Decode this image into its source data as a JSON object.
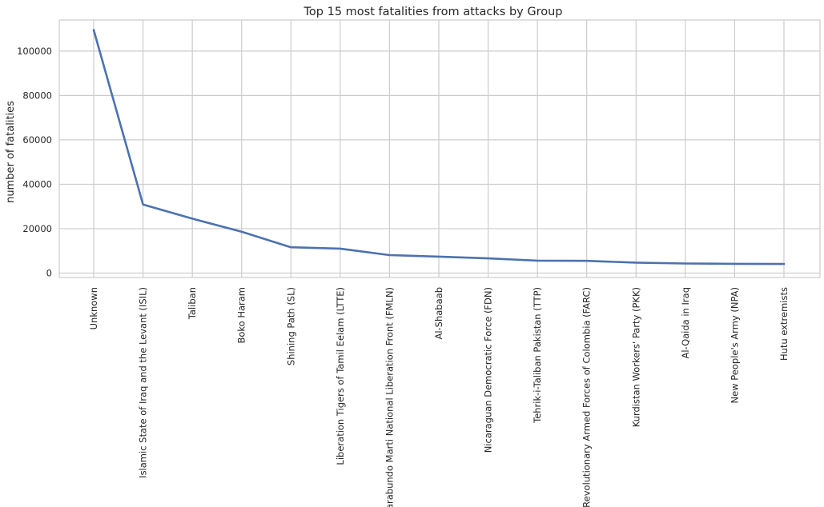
{
  "chart_data": {
    "type": "line",
    "title": "Top 15 most fatalities from attacks by Group",
    "xlabel": "",
    "ylabel": "number of fatalities",
    "categories": [
      "Unknown",
      "Islamic State of Iraq and the Levant (ISIL)",
      "Taliban",
      "Boko Haram",
      "Shining Path (SL)",
      "Liberation Tigers of Tamil Eelam (LTTE)",
      "Farabundo Marti National Liberation Front (FMLN)",
      "Al-Shabaab",
      "Nicaraguan Democratic Force (FDN)",
      "Tehrik-i-Taliban Pakistan (TTP)",
      "Revolutionary Armed Forces of Colombia (FARC)",
      "Kurdistan Workers' Party (PKK)",
      "Al-Qaida in Iraq",
      "New People's Army (NPA)",
      "Hutu extremists"
    ],
    "values": [
      109500,
      30900,
      24500,
      18600,
      11600,
      11000,
      8100,
      7400,
      6600,
      5600,
      5500,
      4700,
      4300,
      4150,
      4100
    ],
    "yticks": [
      0,
      20000,
      40000,
      60000,
      80000,
      100000
    ],
    "ylim": [
      -2000,
      114000
    ],
    "grid": true,
    "line_color": "#4c72b0"
  }
}
